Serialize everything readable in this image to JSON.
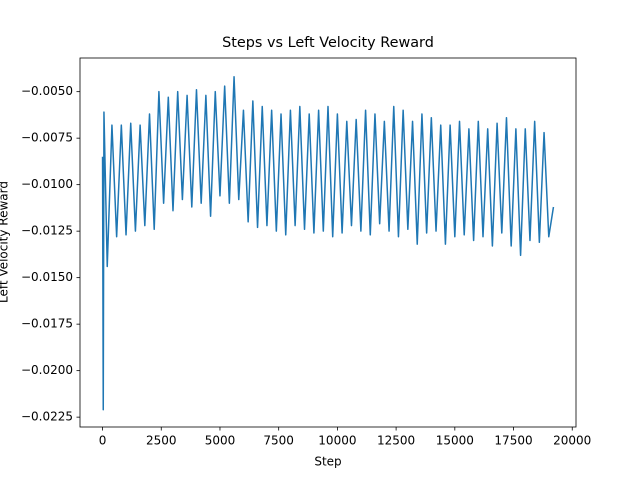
{
  "chart_data": {
    "type": "line",
    "title": "Steps vs Left Velocity Reward",
    "x_label": "Step",
    "y_label": "Left Velocity Reward",
    "x": [
      0,
      30,
      60,
      200,
      400,
      600,
      800,
      1000,
      1200,
      1400,
      1600,
      1800,
      2000,
      2200,
      2400,
      2600,
      2800,
      3000,
      3200,
      3400,
      3600,
      3800,
      4000,
      4200,
      4400,
      4600,
      4800,
      5000,
      5200,
      5400,
      5600,
      5800,
      6000,
      6200,
      6400,
      6600,
      6800,
      7000,
      7200,
      7400,
      7600,
      7800,
      8000,
      8200,
      8400,
      8600,
      8800,
      9000,
      9200,
      9400,
      9600,
      9800,
      10000,
      10200,
      10400,
      10600,
      10800,
      11000,
      11200,
      11400,
      11600,
      11800,
      12000,
      12200,
      12400,
      12600,
      12800,
      13000,
      13200,
      13400,
      13600,
      13800,
      14000,
      14200,
      14400,
      14600,
      14800,
      15000,
      15200,
      15400,
      15600,
      15800,
      16000,
      16200,
      16400,
      16600,
      16800,
      17000,
      17200,
      17400,
      17600,
      17800,
      18000,
      18200,
      18400,
      18600,
      18800,
      19000,
      19200
    ],
    "series": [
      {
        "color": "#1f77b4",
        "values": [
          -0.0085,
          -0.0221,
          -0.0061,
          -0.0144,
          -0.0068,
          -0.0128,
          -0.0068,
          -0.0127,
          -0.0067,
          -0.0125,
          -0.0068,
          -0.0122,
          -0.0062,
          -0.0124,
          -0.005,
          -0.011,
          -0.0053,
          -0.0114,
          -0.005,
          -0.0108,
          -0.0052,
          -0.0112,
          -0.0049,
          -0.011,
          -0.0052,
          -0.0117,
          -0.005,
          -0.0106,
          -0.0047,
          -0.011,
          -0.0042,
          -0.0108,
          -0.006,
          -0.012,
          -0.0055,
          -0.0123,
          -0.0058,
          -0.0122,
          -0.006,
          -0.0125,
          -0.0062,
          -0.0127,
          -0.006,
          -0.0122,
          -0.0058,
          -0.0124,
          -0.0062,
          -0.0126,
          -0.006,
          -0.0125,
          -0.0058,
          -0.0128,
          -0.0062,
          -0.0126,
          -0.0066,
          -0.0122,
          -0.0065,
          -0.0125,
          -0.006,
          -0.0127,
          -0.0062,
          -0.0121,
          -0.0066,
          -0.0125,
          -0.0058,
          -0.0128,
          -0.006,
          -0.0124,
          -0.0066,
          -0.0132,
          -0.0062,
          -0.0126,
          -0.0064,
          -0.0125,
          -0.0068,
          -0.0132,
          -0.0068,
          -0.0128,
          -0.0066,
          -0.0127,
          -0.007,
          -0.013,
          -0.0066,
          -0.0128,
          -0.007,
          -0.0133,
          -0.0067,
          -0.0126,
          -0.0064,
          -0.0133,
          -0.007,
          -0.0138,
          -0.007,
          -0.013,
          -0.0066,
          -0.0131,
          -0.0072,
          -0.0128,
          -0.0112
        ]
      }
    ],
    "xlim": [
      -960,
      20160
    ],
    "ylim": [
      -0.02303,
      -0.00319
    ],
    "xticks": [
      0,
      2500,
      5000,
      7500,
      10000,
      12500,
      15000,
      17500,
      20000
    ],
    "yticks": [
      {
        "value": -0.0225,
        "label": "−0.0225"
      },
      {
        "value": -0.02,
        "label": "−0.0200"
      },
      {
        "value": -0.0175,
        "label": "−0.0175"
      },
      {
        "value": -0.015,
        "label": "−0.0150"
      },
      {
        "value": -0.0125,
        "label": "−0.0125"
      },
      {
        "value": -0.01,
        "label": "−0.0100"
      },
      {
        "value": -0.0075,
        "label": "−0.0075"
      },
      {
        "value": -0.005,
        "label": "−0.0050"
      }
    ],
    "grid": false
  }
}
